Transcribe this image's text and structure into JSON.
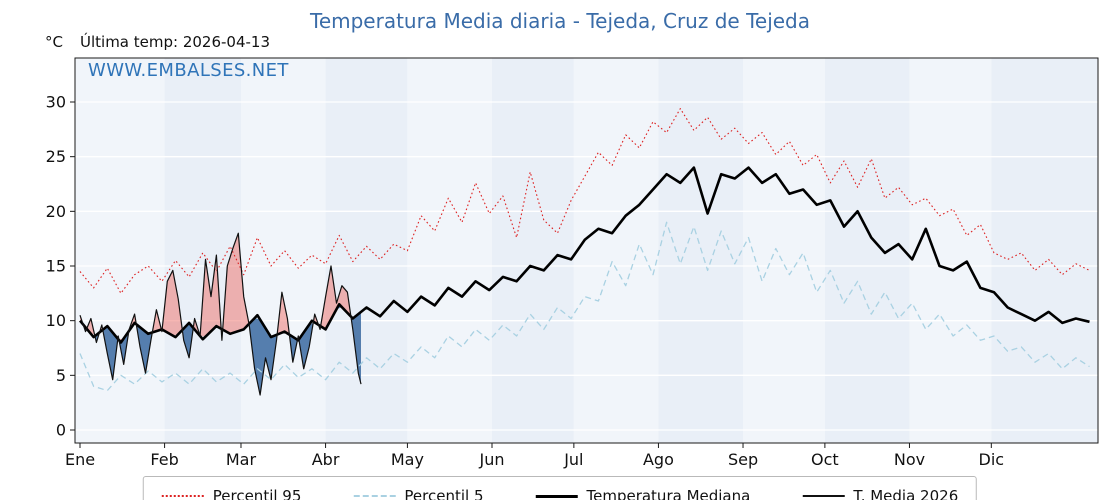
{
  "page": {
    "title": "Temperatura Media diaria - Tejeda, Cruz de Tejeda",
    "unit_label": "°C",
    "last_temp_label": "Última temp: 2026-04-13",
    "watermark": "WWW.EMBALSES.NET"
  },
  "colors": {
    "title": "#3a6ca8",
    "watermark": "#2f74b8",
    "band_even": "#f1f5fa",
    "band_odd": "#e9eff7",
    "grid": "#ffffff",
    "axis": "#1a1a1a",
    "fill_above": "rgba(238,122,116,0.55)",
    "fill_below": "rgba(58,104,160,0.85)"
  },
  "chart_data": {
    "type": "line",
    "title": "Temperatura Media diaria - Tejeda, Cruz de Tejeda",
    "xlabel": "",
    "ylabel": "°C",
    "ylim": [
      -1,
      34
    ],
    "yticks": [
      0,
      5,
      10,
      15,
      20,
      25,
      30
    ],
    "month_labels": [
      "Ene",
      "Feb",
      "Mar",
      "Abr",
      "May",
      "Jun",
      "Jul",
      "Ago",
      "Sep",
      "Oct",
      "Nov",
      "Dic"
    ],
    "month_start_days": [
      0,
      31,
      59,
      90,
      120,
      151,
      181,
      212,
      243,
      273,
      304,
      334
    ],
    "legend_position": "bottom",
    "grid": true,
    "series": [
      {
        "name": "Percentil 95",
        "style": "dotted",
        "color": "#dd2222",
        "days": [
          0,
          5,
          10,
          15,
          20,
          25,
          30,
          35,
          40,
          45,
          50,
          55,
          60,
          65,
          70,
          75,
          80,
          85,
          90,
          95,
          100,
          105,
          110,
          115,
          120,
          125,
          130,
          135,
          140,
          145,
          150,
          155,
          160,
          165,
          170,
          175,
          180,
          185,
          190,
          195,
          200,
          205,
          210,
          215,
          220,
          225,
          230,
          235,
          240,
          245,
          250,
          255,
          260,
          265,
          270,
          275,
          280,
          285,
          290,
          295,
          300,
          305,
          310,
          315,
          320,
          325,
          330,
          335,
          340,
          345,
          350,
          355,
          360,
          365,
          370
        ],
        "values": [
          14.5,
          13.0,
          14.8,
          12.5,
          14.2,
          15.0,
          13.6,
          15.5,
          14.0,
          16.2,
          14.5,
          16.8,
          14.2,
          17.6,
          15.0,
          16.4,
          14.8,
          16.0,
          15.2,
          17.8,
          15.4,
          16.8,
          15.6,
          17.0,
          16.4,
          19.6,
          18.2,
          21.2,
          19.0,
          22.6,
          19.8,
          21.4,
          17.6,
          23.6,
          19.2,
          18.0,
          21.0,
          23.2,
          25.4,
          24.2,
          27.0,
          25.8,
          28.2,
          27.2,
          29.4,
          27.4,
          28.6,
          26.6,
          27.6,
          26.2,
          27.2,
          25.2,
          26.4,
          24.2,
          25.2,
          22.6,
          24.6,
          22.2,
          24.8,
          21.2,
          22.2,
          20.6,
          21.2,
          19.6,
          20.2,
          17.8,
          18.8,
          16.2,
          15.6,
          16.2,
          14.6,
          15.6,
          14.2,
          15.2,
          14.6
        ]
      },
      {
        "name": "Percentil 5",
        "style": "dashed",
        "color": "#a9d1e2",
        "days": [
          0,
          5,
          10,
          15,
          20,
          25,
          30,
          35,
          40,
          45,
          50,
          55,
          60,
          65,
          70,
          75,
          80,
          85,
          90,
          95,
          100,
          105,
          110,
          115,
          120,
          125,
          130,
          135,
          140,
          145,
          150,
          155,
          160,
          165,
          170,
          175,
          180,
          185,
          190,
          195,
          200,
          205,
          210,
          215,
          220,
          225,
          230,
          235,
          240,
          245,
          250,
          255,
          260,
          265,
          270,
          275,
          280,
          285,
          290,
          295,
          300,
          305,
          310,
          315,
          320,
          325,
          330,
          335,
          340,
          345,
          350,
          355,
          360,
          365,
          370
        ],
        "values": [
          7.0,
          4.0,
          3.6,
          5.0,
          4.2,
          5.4,
          4.4,
          5.2,
          4.2,
          5.6,
          4.4,
          5.2,
          4.2,
          5.6,
          4.6,
          6.0,
          4.8,
          5.6,
          4.6,
          6.2,
          5.2,
          6.6,
          5.6,
          7.0,
          6.2,
          7.6,
          6.6,
          8.6,
          7.6,
          9.2,
          8.2,
          9.6,
          8.6,
          10.6,
          9.2,
          11.2,
          10.2,
          12.2,
          11.8,
          15.4,
          13.2,
          17.0,
          14.2,
          19.0,
          15.2,
          18.6,
          14.6,
          18.2,
          15.2,
          17.6,
          13.6,
          16.6,
          14.2,
          16.2,
          12.6,
          14.6,
          11.6,
          13.6,
          10.6,
          12.6,
          10.2,
          11.6,
          9.2,
          10.6,
          8.6,
          9.6,
          8.2,
          8.6,
          7.2,
          7.6,
          6.2,
          7.0,
          5.6,
          6.6,
          5.8
        ]
      },
      {
        "name": "Temperatura Mediana",
        "style": "solid-thick",
        "color": "#000000",
        "days": [
          0,
          5,
          10,
          15,
          20,
          25,
          30,
          35,
          40,
          45,
          50,
          55,
          60,
          65,
          70,
          75,
          80,
          85,
          90,
          95,
          100,
          105,
          110,
          115,
          120,
          125,
          130,
          135,
          140,
          145,
          150,
          155,
          160,
          165,
          170,
          175,
          180,
          185,
          190,
          195,
          200,
          205,
          210,
          215,
          220,
          225,
          230,
          235,
          240,
          245,
          250,
          255,
          260,
          265,
          270,
          275,
          280,
          285,
          290,
          295,
          300,
          305,
          310,
          315,
          320,
          325,
          330,
          335,
          340,
          345,
          350,
          355,
          360,
          365,
          370
        ],
        "values": [
          10.0,
          8.5,
          9.5,
          8.0,
          9.8,
          8.8,
          9.2,
          8.5,
          9.8,
          8.3,
          9.5,
          8.8,
          9.2,
          10.5,
          8.5,
          9.0,
          8.2,
          10.0,
          9.2,
          11.5,
          10.2,
          11.2,
          10.4,
          11.8,
          10.8,
          12.2,
          11.4,
          13.0,
          12.2,
          13.6,
          12.8,
          14.0,
          13.6,
          15.0,
          14.6,
          16.0,
          15.6,
          17.4,
          18.4,
          18.0,
          19.6,
          20.6,
          22.0,
          23.4,
          22.6,
          24.0,
          19.8,
          23.4,
          23.0,
          24.0,
          22.6,
          23.4,
          21.6,
          22.0,
          20.6,
          21.0,
          18.6,
          20.0,
          17.6,
          16.2,
          17.0,
          15.6,
          18.4,
          15.0,
          14.6,
          15.4,
          13.0,
          12.6,
          11.2,
          10.6,
          10.0,
          10.8,
          9.8,
          10.2,
          9.9
        ]
      },
      {
        "name": "T. Media 2026",
        "style": "solid-thin",
        "color": "#111111",
        "fill_vs_median": true,
        "days": [
          0,
          2,
          4,
          6,
          8,
          10,
          12,
          14,
          16,
          18,
          20,
          22,
          24,
          26,
          28,
          30,
          32,
          34,
          36,
          38,
          40,
          42,
          44,
          46,
          48,
          50,
          52,
          54,
          56,
          58,
          60,
          62,
          64,
          66,
          68,
          70,
          72,
          74,
          76,
          78,
          80,
          82,
          84,
          86,
          88,
          90,
          92,
          94,
          96,
          98,
          100,
          102,
          103
        ],
        "values": [
          10.5,
          9.0,
          10.2,
          8.0,
          9.6,
          7.0,
          4.6,
          8.6,
          6.0,
          9.2,
          10.6,
          7.6,
          5.2,
          8.2,
          11.0,
          9.0,
          13.6,
          14.6,
          12.0,
          8.2,
          6.6,
          10.2,
          8.6,
          15.6,
          12.2,
          16.0,
          8.2,
          15.0,
          16.6,
          18.0,
          12.2,
          9.6,
          5.6,
          3.2,
          6.6,
          4.6,
          8.2,
          12.6,
          10.2,
          6.2,
          8.6,
          5.6,
          7.6,
          10.6,
          9.2,
          12.2,
          15.0,
          11.6,
          13.2,
          12.6,
          9.2,
          5.2,
          4.2
        ]
      }
    ]
  }
}
